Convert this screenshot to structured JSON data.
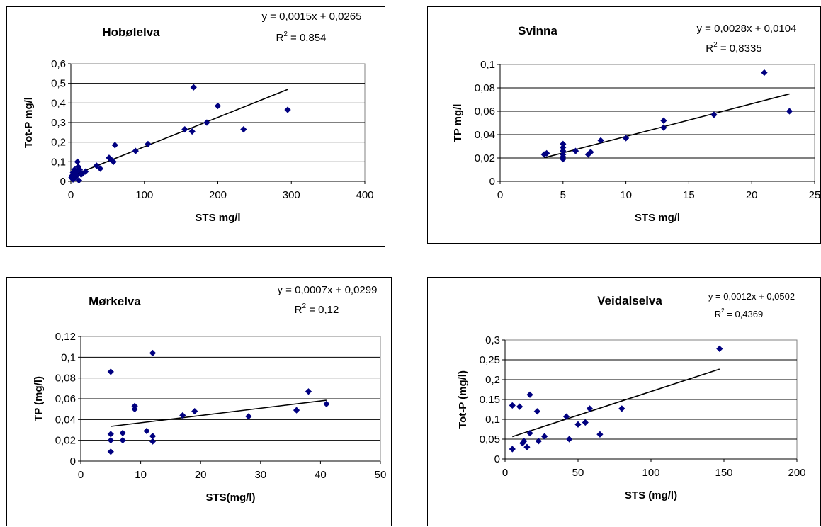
{
  "chart_data": [
    {
      "type": "scatter",
      "title": "Hobølelva",
      "xlabel": "STS mg/l",
      "ylabel": "Tot-P mg/l",
      "equation": "y = 0,0015x + 0,0265",
      "r2_prefix": "R",
      "r2_sup": "2",
      "r2_value": " = 0,854",
      "xlim": [
        0,
        400
      ],
      "ylim": [
        0,
        0.6
      ],
      "xticks": [
        0,
        100,
        200,
        300,
        400
      ],
      "xtick_labels": [
        "0",
        "100",
        "200",
        "300",
        "400"
      ],
      "yticks": [
        0,
        0.1,
        0.2,
        0.3,
        0.4,
        0.5,
        0.6
      ],
      "ytick_labels": [
        "0",
        "0,1",
        "0,2",
        "0,3",
        "0,4",
        "0,5",
        "0,6"
      ],
      "grid": true,
      "marker_color": "#000080",
      "trendline": {
        "slope": 0.0015,
        "intercept": 0.0265,
        "x_range": [
          0,
          295
        ]
      },
      "points": [
        [
          1,
          0.02
        ],
        [
          2,
          0.03
        ],
        [
          3,
          0.045
        ],
        [
          3,
          0.01
        ],
        [
          4,
          0.035
        ],
        [
          5,
          0.05
        ],
        [
          5,
          0.06
        ],
        [
          6,
          0.02
        ],
        [
          7,
          0.045
        ],
        [
          8,
          0.03
        ],
        [
          9,
          0.055
        ],
        [
          9,
          0.1
        ],
        [
          10,
          0.075
        ],
        [
          11,
          0.005
        ],
        [
          12,
          0.06
        ],
        [
          14,
          0.035
        ],
        [
          16,
          0.04
        ],
        [
          20,
          0.05
        ],
        [
          35,
          0.08
        ],
        [
          40,
          0.065
        ],
        [
          52,
          0.12
        ],
        [
          55,
          0.11
        ],
        [
          58,
          0.1
        ],
        [
          60,
          0.185
        ],
        [
          88,
          0.155
        ],
        [
          105,
          0.19
        ],
        [
          155,
          0.265
        ],
        [
          165,
          0.255
        ],
        [
          167,
          0.48
        ],
        [
          185,
          0.3
        ],
        [
          200,
          0.385
        ],
        [
          235,
          0.265
        ],
        [
          295,
          0.365
        ]
      ]
    },
    {
      "type": "scatter",
      "title": "Svinna",
      "xlabel": "STS mg/l",
      "ylabel": "TP mg/l",
      "equation": "y = 0,0028x + 0,0104",
      "r2_prefix": "R",
      "r2_sup": "2",
      "r2_value": " = 0,8335",
      "xlim": [
        0,
        25
      ],
      "ylim": [
        0,
        0.1
      ],
      "xticks": [
        0,
        5,
        10,
        15,
        20,
        25
      ],
      "xtick_labels": [
        "0",
        "5",
        "10",
        "15",
        "20",
        "25"
      ],
      "yticks": [
        0,
        0.02,
        0.04,
        0.06,
        0.08,
        0.1
      ],
      "ytick_labels": [
        "0",
        "0,02",
        "0,04",
        "0,06",
        "0,08",
        "0,1"
      ],
      "grid": true,
      "marker_color": "#000080",
      "trendline": {
        "slope": 0.0028,
        "intercept": 0.0104,
        "x_range": [
          3.5,
          23
        ]
      },
      "points": [
        [
          3.5,
          0.023
        ],
        [
          3.7,
          0.024
        ],
        [
          5,
          0.019
        ],
        [
          5,
          0.021
        ],
        [
          5,
          0.023
        ],
        [
          5,
          0.026
        ],
        [
          5,
          0.029
        ],
        [
          5,
          0.032
        ],
        [
          6,
          0.026
        ],
        [
          7,
          0.023
        ],
        [
          7.2,
          0.025
        ],
        [
          8,
          0.035
        ],
        [
          10,
          0.037
        ],
        [
          13,
          0.046
        ],
        [
          13,
          0.052
        ],
        [
          17,
          0.057
        ],
        [
          21,
          0.093
        ],
        [
          23,
          0.06
        ]
      ]
    },
    {
      "type": "scatter",
      "title": "Mørkelva",
      "xlabel": "STS(mg/l)",
      "ylabel": "TP (mg/l)",
      "equation": "y = 0,0007x + 0,0299",
      "r2_prefix": "R",
      "r2_sup": "2",
      "r2_value": " = 0,12",
      "xlim": [
        0,
        50
      ],
      "ylim": [
        0,
        0.12
      ],
      "xticks": [
        0,
        10,
        20,
        30,
        40,
        50
      ],
      "xtick_labels": [
        "0",
        "10",
        "20",
        "30",
        "40",
        "50"
      ],
      "yticks": [
        0,
        0.02,
        0.04,
        0.06,
        0.08,
        0.1,
        0.12
      ],
      "ytick_labels": [
        "0",
        "0,02",
        "0,04",
        "0,06",
        "0,08",
        "0,1",
        "0,12"
      ],
      "grid": true,
      "marker_color": "#000080",
      "trendline": {
        "slope": 0.0007,
        "intercept": 0.0299,
        "x_range": [
          5,
          41
        ]
      },
      "points": [
        [
          5,
          0.009
        ],
        [
          5,
          0.02
        ],
        [
          5,
          0.026
        ],
        [
          5,
          0.086
        ],
        [
          7,
          0.02
        ],
        [
          7,
          0.027
        ],
        [
          9,
          0.05
        ],
        [
          9,
          0.053
        ],
        [
          11,
          0.029
        ],
        [
          12,
          0.019
        ],
        [
          12,
          0.024
        ],
        [
          12,
          0.104
        ],
        [
          17,
          0.044
        ],
        [
          19,
          0.048
        ],
        [
          28,
          0.043
        ],
        [
          36,
          0.049
        ],
        [
          38,
          0.067
        ],
        [
          41,
          0.055
        ]
      ]
    },
    {
      "type": "scatter",
      "title": "Veidalselva",
      "xlabel": "STS (mg/l)",
      "ylabel": "Tot-P (mg/l)",
      "equation": "y = 0,0012x + 0,0502",
      "r2_prefix": "R",
      "r2_sup": "2",
      "r2_value": " = 0,4369",
      "xlim": [
        0,
        200
      ],
      "ylim": [
        0,
        0.3
      ],
      "xticks": [
        0,
        50,
        100,
        150,
        200
      ],
      "xtick_labels": [
        "0",
        "50",
        "100",
        "150",
        "200"
      ],
      "yticks": [
        0,
        0.05,
        0.1,
        0.15,
        0.2,
        0.25,
        0.3
      ],
      "ytick_labels": [
        "0",
        "0,05",
        "0,1",
        "0,15",
        "0,2",
        "0,25",
        "0,3"
      ],
      "grid": true,
      "marker_color": "#000080",
      "trendline": {
        "slope": 0.0012,
        "intercept": 0.0502,
        "x_range": [
          5,
          147
        ]
      },
      "points": [
        [
          5,
          0.025
        ],
        [
          5,
          0.135
        ],
        [
          10,
          0.132
        ],
        [
          12,
          0.04
        ],
        [
          13,
          0.045
        ],
        [
          15,
          0.03
        ],
        [
          17,
          0.065
        ],
        [
          17,
          0.162
        ],
        [
          22,
          0.12
        ],
        [
          23,
          0.045
        ],
        [
          27,
          0.057
        ],
        [
          42,
          0.107
        ],
        [
          44,
          0.05
        ],
        [
          50,
          0.087
        ],
        [
          55,
          0.092
        ],
        [
          58,
          0.127
        ],
        [
          65,
          0.062
        ],
        [
          80,
          0.127
        ],
        [
          147,
          0.278
        ]
      ]
    }
  ]
}
